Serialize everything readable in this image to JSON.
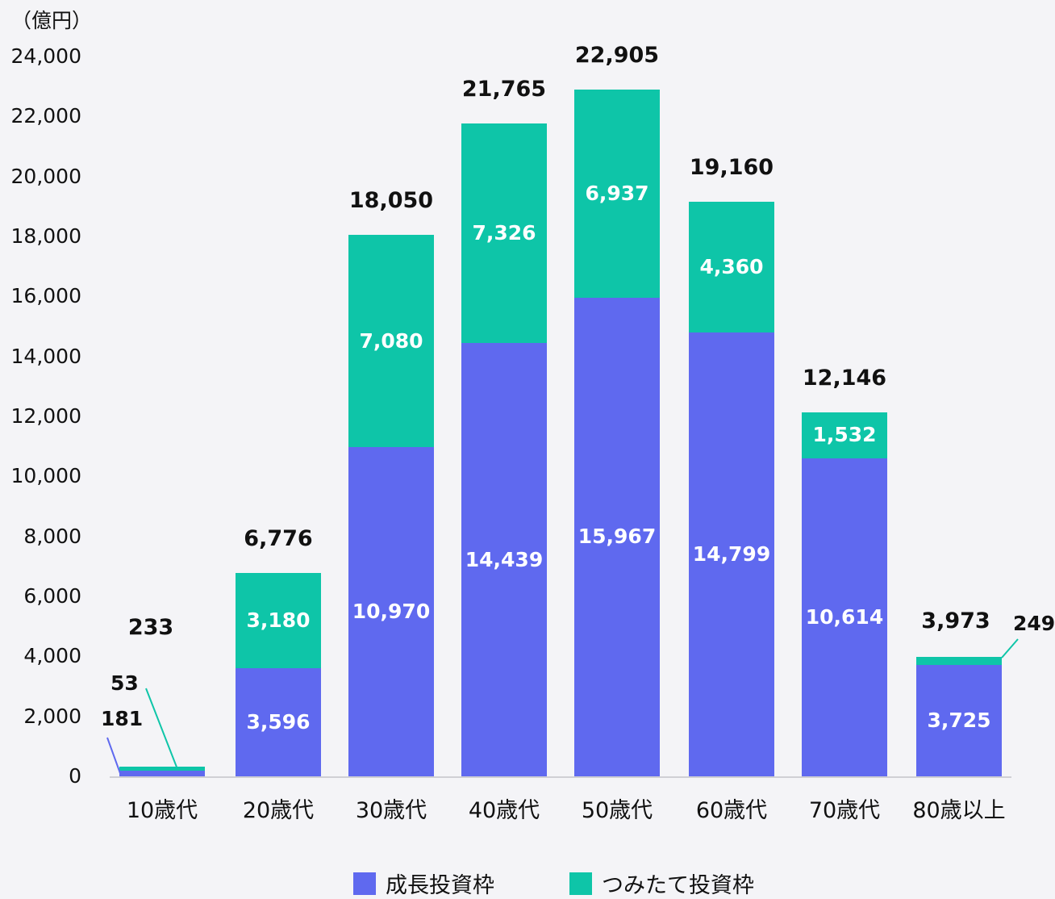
{
  "chart_data": {
    "type": "bar",
    "stacked": true,
    "unit_label": "（億円）",
    "categories": [
      "10歳代",
      "20歳代",
      "30歳代",
      "40歳代",
      "50歳代",
      "60歳代",
      "70歳代",
      "80歳以上"
    ],
    "series": [
      {
        "name": "成長投資枠",
        "color": "#5f69ef",
        "values": [
          181,
          3596,
          10970,
          14439,
          15967,
          14799,
          10614,
          3725
        ]
      },
      {
        "name": "つみたて投資枠",
        "color": "#0ec5a8",
        "values": [
          53,
          3180,
          7080,
          7326,
          6937,
          4360,
          1532,
          249
        ]
      }
    ],
    "totals": [
      233,
      6776,
      18050,
      21765,
      22905,
      19160,
      12146,
      3973
    ],
    "value_labels": {
      "growth": [
        "181",
        "3,596",
        "10,970",
        "14,439",
        "15,967",
        "14,799",
        "10,614",
        "3,725"
      ],
      "tsumitate": [
        "53",
        "3,180",
        "7,080",
        "7,326",
        "6,937",
        "4,360",
        "1,532",
        "249"
      ],
      "totals": [
        "233",
        "6,776",
        "18,050",
        "21,765",
        "22,905",
        "19,160",
        "12,146",
        "3,973"
      ]
    },
    "yticks": [
      "24,000",
      "22,000",
      "20,000",
      "18,000",
      "16,000",
      "14,000",
      "12,000",
      "10,000",
      "8,000",
      "6,000",
      "4,000",
      "2,000",
      "0"
    ],
    "ylim": [
      0,
      24000
    ],
    "xlabel": "",
    "ylabel": "（億円）",
    "grid": false,
    "legend_position": "bottom"
  },
  "legend": {
    "growth": "成長投資枠",
    "tsumitate": "つみたて投資枠"
  }
}
